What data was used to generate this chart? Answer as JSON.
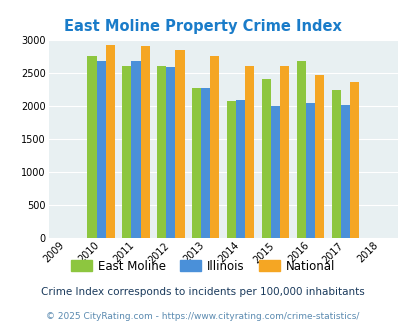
{
  "title": "East Moline Property Crime Index",
  "years": [
    2009,
    2010,
    2011,
    2012,
    2013,
    2014,
    2015,
    2016,
    2017,
    2018
  ],
  "bar_years": [
    2010,
    2011,
    2012,
    2013,
    2014,
    2015,
    2016,
    2017
  ],
  "east_moline": [
    2750,
    2600,
    2600,
    2270,
    2070,
    2400,
    2680,
    2240
  ],
  "illinois": [
    2670,
    2670,
    2580,
    2270,
    2090,
    2000,
    2045,
    2010
  ],
  "national": [
    2920,
    2910,
    2850,
    2750,
    2600,
    2600,
    2460,
    2360
  ],
  "colors": {
    "east_moline": "#8dc63f",
    "illinois": "#4a90d9",
    "national": "#f5a623"
  },
  "ylim": [
    0,
    3000
  ],
  "yticks": [
    0,
    500,
    1000,
    1500,
    2000,
    2500,
    3000
  ],
  "legend_labels": [
    "East Moline",
    "Illinois",
    "National"
  ],
  "footnote1": "Crime Index corresponds to incidents per 100,000 inhabitants",
  "footnote2": "© 2025 CityRating.com - https://www.cityrating.com/crime-statistics/",
  "bg_color": "#e8f0f2",
  "title_color": "#1a7cc9",
  "footnote1_color": "#1a3a5c",
  "footnote2_color": "#5a8ab0"
}
